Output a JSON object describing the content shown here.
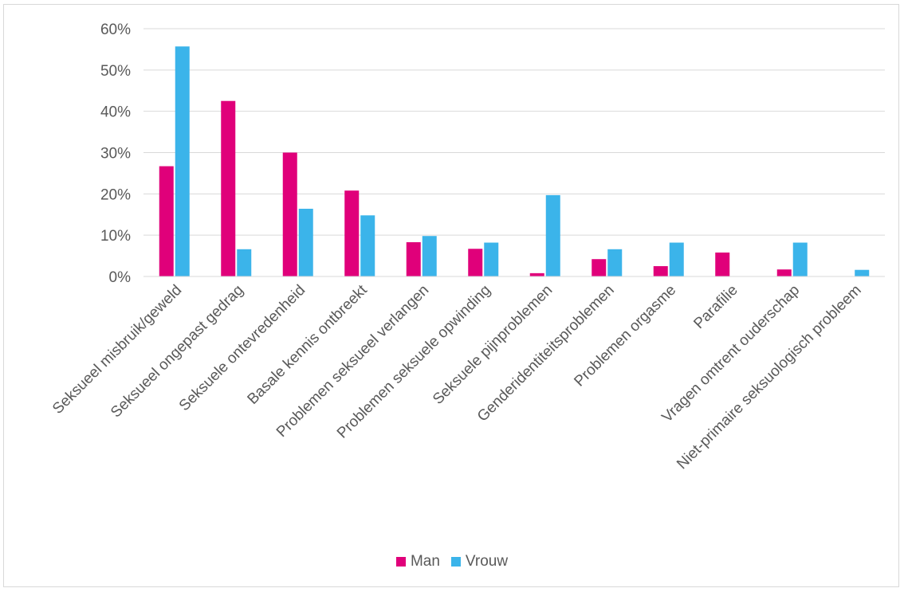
{
  "chart_data": {
    "type": "bar",
    "categories": [
      "Seksueel misbruik/geweld",
      "Seksueel ongepast gedrag",
      "Seksuele ontevredenheid",
      "Basale kennis ontbreekt",
      "Problemen seksueel verlangen",
      "Problemen seksuele opwinding",
      "Seksuele pijnproblemen",
      "Genderidentiteitsproblemen",
      "Problemen orgasme",
      "Parafilie",
      "Vragen omtrent ouderschap",
      "Niet-primaire seksuologisch probleem"
    ],
    "series": [
      {
        "name": "Man",
        "color": "#e0007a",
        "values": [
          26.7,
          42.5,
          30.0,
          20.8,
          8.3,
          6.7,
          0.8,
          4.2,
          2.5,
          5.8,
          1.7,
          0
        ]
      },
      {
        "name": "Vrouw",
        "color": "#3bb4ea",
        "values": [
          55.7,
          6.6,
          16.4,
          14.8,
          9.8,
          8.2,
          19.7,
          6.6,
          8.2,
          0,
          8.2,
          1.6
        ]
      }
    ],
    "yticks": [
      "0%",
      "10%",
      "20%",
      "30%",
      "40%",
      "50%",
      "60%"
    ],
    "ylim": [
      0,
      60
    ],
    "grid": true,
    "legend_position": "bottom"
  }
}
